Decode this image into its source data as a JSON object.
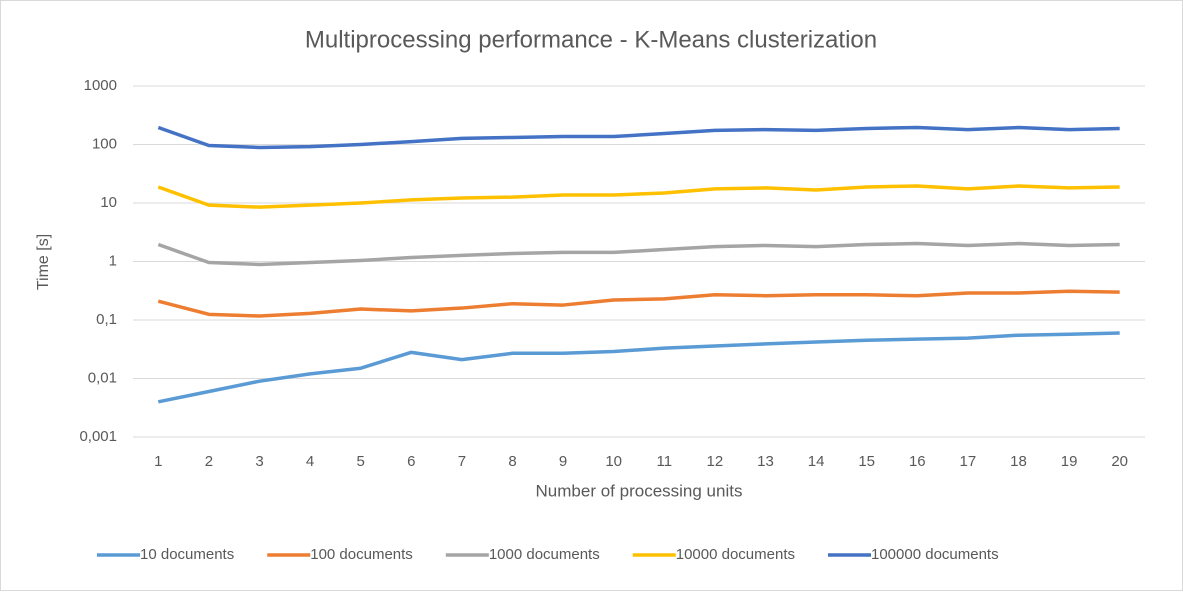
{
  "chart_data": {
    "type": "line",
    "title": "Multiprocessing performance - K-Means clusterization",
    "x_label": "Number of processing units",
    "y_label": "Time [s]",
    "categories": [
      1,
      2,
      3,
      4,
      5,
      6,
      7,
      8,
      9,
      10,
      11,
      12,
      13,
      14,
      15,
      16,
      17,
      18,
      19,
      20
    ],
    "log_scale": true,
    "grid": true,
    "legend": "bottom",
    "ylim": [
      0.001,
      1000
    ],
    "yticks": [
      {
        "value": 0.001,
        "label": "0,001"
      },
      {
        "value": 0.01,
        "label": "0,01"
      },
      {
        "value": 0.1,
        "label": "0,1"
      },
      1,
      10,
      100,
      1000
    ],
    "series": [
      {
        "name": "10 documents",
        "color": "#5b9bd5",
        "values": [
          0.004,
          0.006,
          0.009,
          0.012,
          0.015,
          0.028,
          0.021,
          0.027,
          0.027,
          0.029,
          0.033,
          0.036,
          0.039,
          0.042,
          0.045,
          0.047,
          0.049,
          0.055,
          0.057,
          0.06
        ]
      },
      {
        "name": "100 documents",
        "color": "#ed7d31",
        "values": [
          0.21,
          0.125,
          0.117,
          0.13,
          0.154,
          0.143,
          0.16,
          0.19,
          0.18,
          0.22,
          0.23,
          0.27,
          0.26,
          0.27,
          0.27,
          0.26,
          0.29,
          0.29,
          0.31,
          0.3
        ]
      },
      {
        "name": "1000 documents",
        "color": "#a5a5a5",
        "values": [
          1.95,
          0.96,
          0.89,
          0.96,
          1.04,
          1.17,
          1.27,
          1.37,
          1.43,
          1.43,
          1.6,
          1.8,
          1.88,
          1.8,
          1.95,
          2.03,
          1.88,
          2.03,
          1.88,
          1.95
        ]
      },
      {
        "name": "10000 documents",
        "color": "#ffc000",
        "values": [
          18.8,
          9.2,
          8.5,
          9.2,
          10,
          11.3,
          12.2,
          12.6,
          13.7,
          13.7,
          14.8,
          17.4,
          18.1,
          16.7,
          18.8,
          19.5,
          17.4,
          19.5,
          18.1,
          18.8
        ]
      },
      {
        "name": "100000 documents",
        "color": "#4472c4",
        "values": [
          195,
          96,
          89,
          92,
          100,
          112,
          127,
          132,
          137,
          137,
          154,
          174,
          180,
          174,
          188,
          195,
          180,
          195,
          180,
          188
        ]
      }
    ]
  }
}
